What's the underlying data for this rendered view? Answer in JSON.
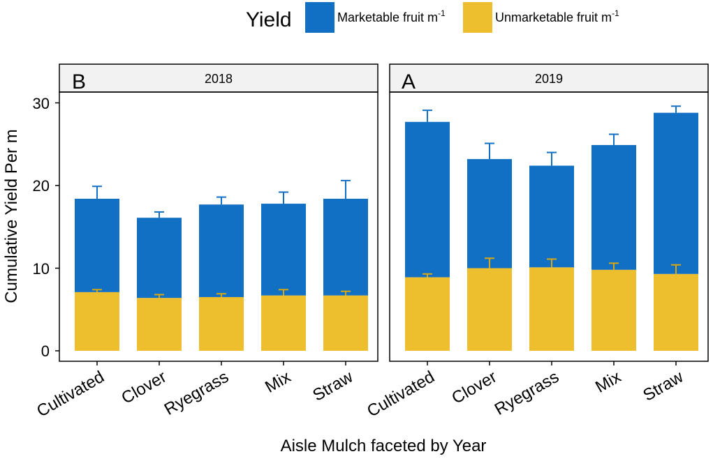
{
  "legend": {
    "title": "Yield",
    "items": [
      {
        "label": "Marketable fruit m",
        "sup": "-1",
        "color": "#1170C4"
      },
      {
        "label": "Unmarketable fruit m",
        "sup": "-1",
        "color": "#EDBE2E"
      }
    ]
  },
  "chart_data": {
    "type": "bar",
    "stacked": true,
    "title": "",
    "xlabel": "Aisle Mulch faceted by Year",
    "ylabel": "Cumulative Yield Per m",
    "ylim": [
      0,
      31
    ],
    "yticks": [
      0,
      10,
      20,
      30
    ],
    "categories": [
      "Cultivated",
      "Clover",
      "Ryegrass",
      "Mix",
      "Straw"
    ],
    "facets": [
      {
        "strip": "2018",
        "panel_letter": "B",
        "series": [
          {
            "name": "Unmarketable fruit m-1",
            "values": [
              7.1,
              6.4,
              6.5,
              6.7,
              6.7
            ],
            "errors": [
              0.3,
              0.4,
              0.4,
              0.7,
              0.5
            ]
          },
          {
            "name": "Marketable fruit m-1",
            "values": [
              11.3,
              9.7,
              11.2,
              11.1,
              11.7
            ],
            "errors": [
              1.5,
              0.7,
              0.9,
              1.4,
              2.2
            ]
          }
        ]
      },
      {
        "strip": "2019",
        "panel_letter": "A",
        "series": [
          {
            "name": "Unmarketable fruit m-1",
            "values": [
              8.9,
              10.0,
              10.1,
              9.8,
              9.3
            ],
            "errors": [
              0.4,
              1.2,
              1.0,
              0.8,
              1.1
            ]
          },
          {
            "name": "Marketable fruit m-1",
            "values": [
              18.8,
              13.2,
              12.3,
              15.1,
              19.5
            ],
            "errors": [
              1.4,
              1.9,
              1.6,
              1.3,
              0.8
            ]
          }
        ]
      }
    ]
  }
}
